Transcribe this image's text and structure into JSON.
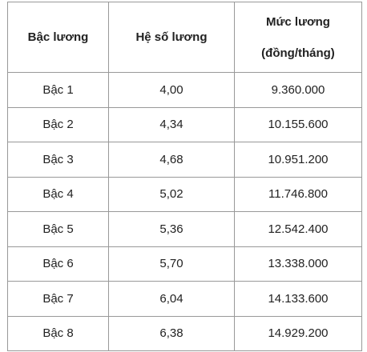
{
  "table": {
    "header": [
      "Bậc lương",
      "Hệ số lương",
      "Mức lương",
      "(đồng/tháng)"
    ],
    "rows": [
      [
        "Bậc 1",
        "4,00",
        "9.360.000"
      ],
      [
        "Bậc 2",
        "4,34",
        "10.155.600"
      ],
      [
        "Bậc 3",
        "4,68",
        "10.951.200"
      ],
      [
        "Bậc 4",
        "5,02",
        "11.746.800"
      ],
      [
        "Bậc 5",
        "5,36",
        "12.542.400"
      ],
      [
        "Bậc 6",
        "5,70",
        "13.338.000"
      ],
      [
        "Bậc 7",
        "6,04",
        "14.133.600"
      ],
      [
        "Bậc 8",
        "6,38",
        "14.929.200"
      ]
    ]
  }
}
